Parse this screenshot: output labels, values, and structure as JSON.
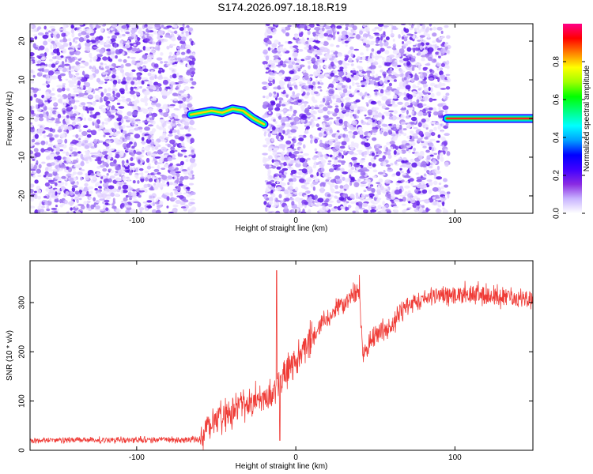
{
  "title": "S174.2026.097.18.18.R19",
  "chart_data": [
    {
      "type": "heatmap",
      "name": "spectrogram",
      "xlabel": "Height of straight line (km)",
      "ylabel": "Frequency (Hz)",
      "xlim": [
        -167,
        149
      ],
      "ylim": [
        -24.5,
        24.5
      ],
      "xticks": [
        -100,
        0,
        100
      ],
      "yticks": [
        -20,
        -10,
        0,
        10,
        20
      ],
      "noise_regions": [
        [
          -167,
          -64
        ],
        [
          -20,
          96
        ]
      ],
      "blank_regions": [
        [
          -64,
          -20
        ],
        [
          96,
          149
        ]
      ],
      "signal_tracks": [
        {
          "x_range": [
            -66,
            -20
          ],
          "freq_hz": [
            1,
            1.5,
            2,
            1.5,
            2.5,
            2,
            0,
            -1.5
          ],
          "peak_amplitude": 0.85
        },
        {
          "x_range": [
            95,
            149
          ],
          "freq_hz": [
            0,
            0,
            0,
            0,
            0
          ],
          "peak_amplitude": 0.98
        }
      ],
      "colorbar": {
        "label": "Normalized spectral amplitude",
        "ticks": [
          0,
          0.2,
          0.4,
          0.6,
          0.8
        ],
        "tick_labels": [
          "0.0",
          "0.2",
          "0.4",
          "0.6",
          "0.8"
        ],
        "range": [
          0,
          1
        ],
        "colors": [
          "#ffffff",
          "#c8b4ff",
          "#8a2be2",
          "#4000ff",
          "#0000ff",
          "#00a0ff",
          "#00ffff",
          "#00ff80",
          "#00ff00",
          "#a0ff00",
          "#ffff00",
          "#ff8000",
          "#ff0000",
          "#ff0088"
        ]
      }
    },
    {
      "type": "line",
      "name": "snr",
      "xlabel": "Height of straight line (km)",
      "ylabel": "SNR (10 * v/v)",
      "xlim": [
        -167,
        149
      ],
      "ylim": [
        0,
        385
      ],
      "xticks": [
        -100,
        0,
        100
      ],
      "yticks": [
        0,
        100,
        200,
        300
      ],
      "color": "#ef3b36",
      "trend_x": [
        -167,
        -60,
        -55,
        -45,
        -30,
        -15,
        0,
        15,
        30,
        40,
        42,
        50,
        60,
        70,
        80,
        90,
        100,
        110,
        120,
        130,
        149
      ],
      "trend_y": [
        20,
        22,
        55,
        70,
        95,
        115,
        185,
        250,
        300,
        330,
        195,
        235,
        255,
        295,
        310,
        315,
        315,
        320,
        315,
        310,
        305
      ],
      "spikes": [
        [
          -12,
          365
        ],
        [
          -10,
          20
        ]
      ]
    }
  ]
}
